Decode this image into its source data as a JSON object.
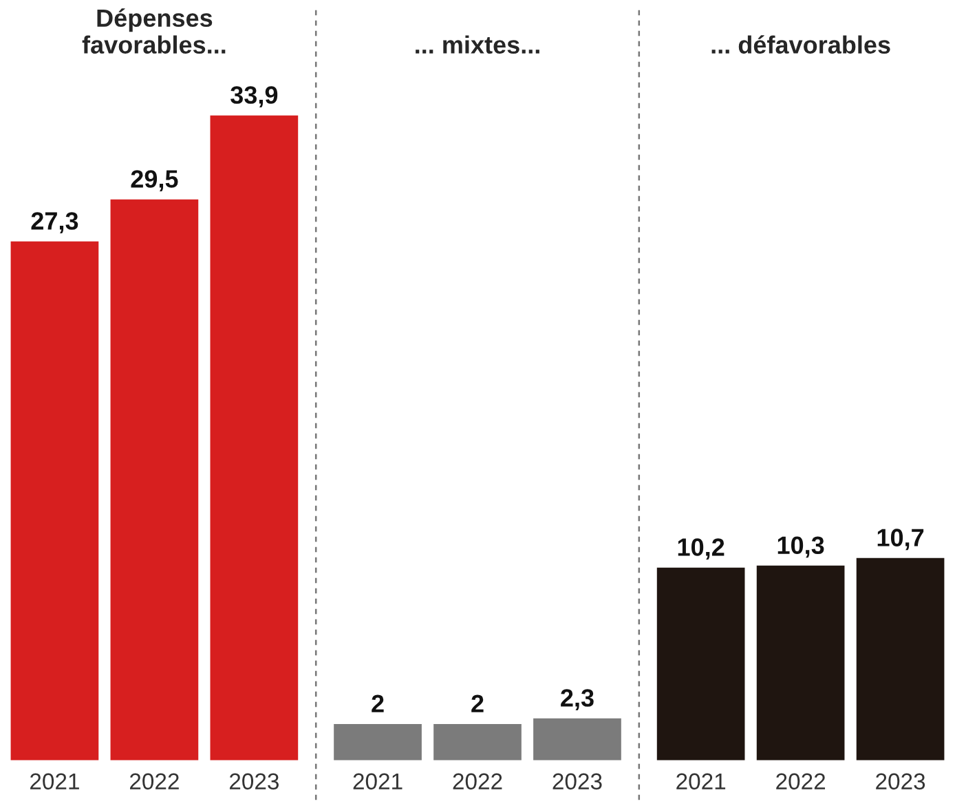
{
  "chart_data": [
    {
      "type": "bar",
      "title": "Dépenses\nfavorables...",
      "categories": [
        "2021",
        "2022",
        "2023"
      ],
      "values": [
        27.3,
        29.5,
        33.9
      ],
      "value_labels": [
        "27,3",
        "29,5",
        "33,9"
      ],
      "color": "#d71f1f",
      "grid": false
    },
    {
      "type": "bar",
      "title": "... mixtes...",
      "categories": [
        "2021",
        "2022",
        "2023"
      ],
      "values": [
        2,
        2,
        2.3
      ],
      "value_labels": [
        "2",
        "2",
        "2,3"
      ],
      "color": "#7b7b7b",
      "grid": false
    },
    {
      "type": "bar",
      "title": "... défavorables",
      "categories": [
        "2021",
        "2022",
        "2023"
      ],
      "values": [
        10.2,
        10.3,
        10.7
      ],
      "value_labels": [
        "10,2",
        "10,3",
        "10,7"
      ],
      "color": "#1f1510",
      "grid": false
    }
  ]
}
